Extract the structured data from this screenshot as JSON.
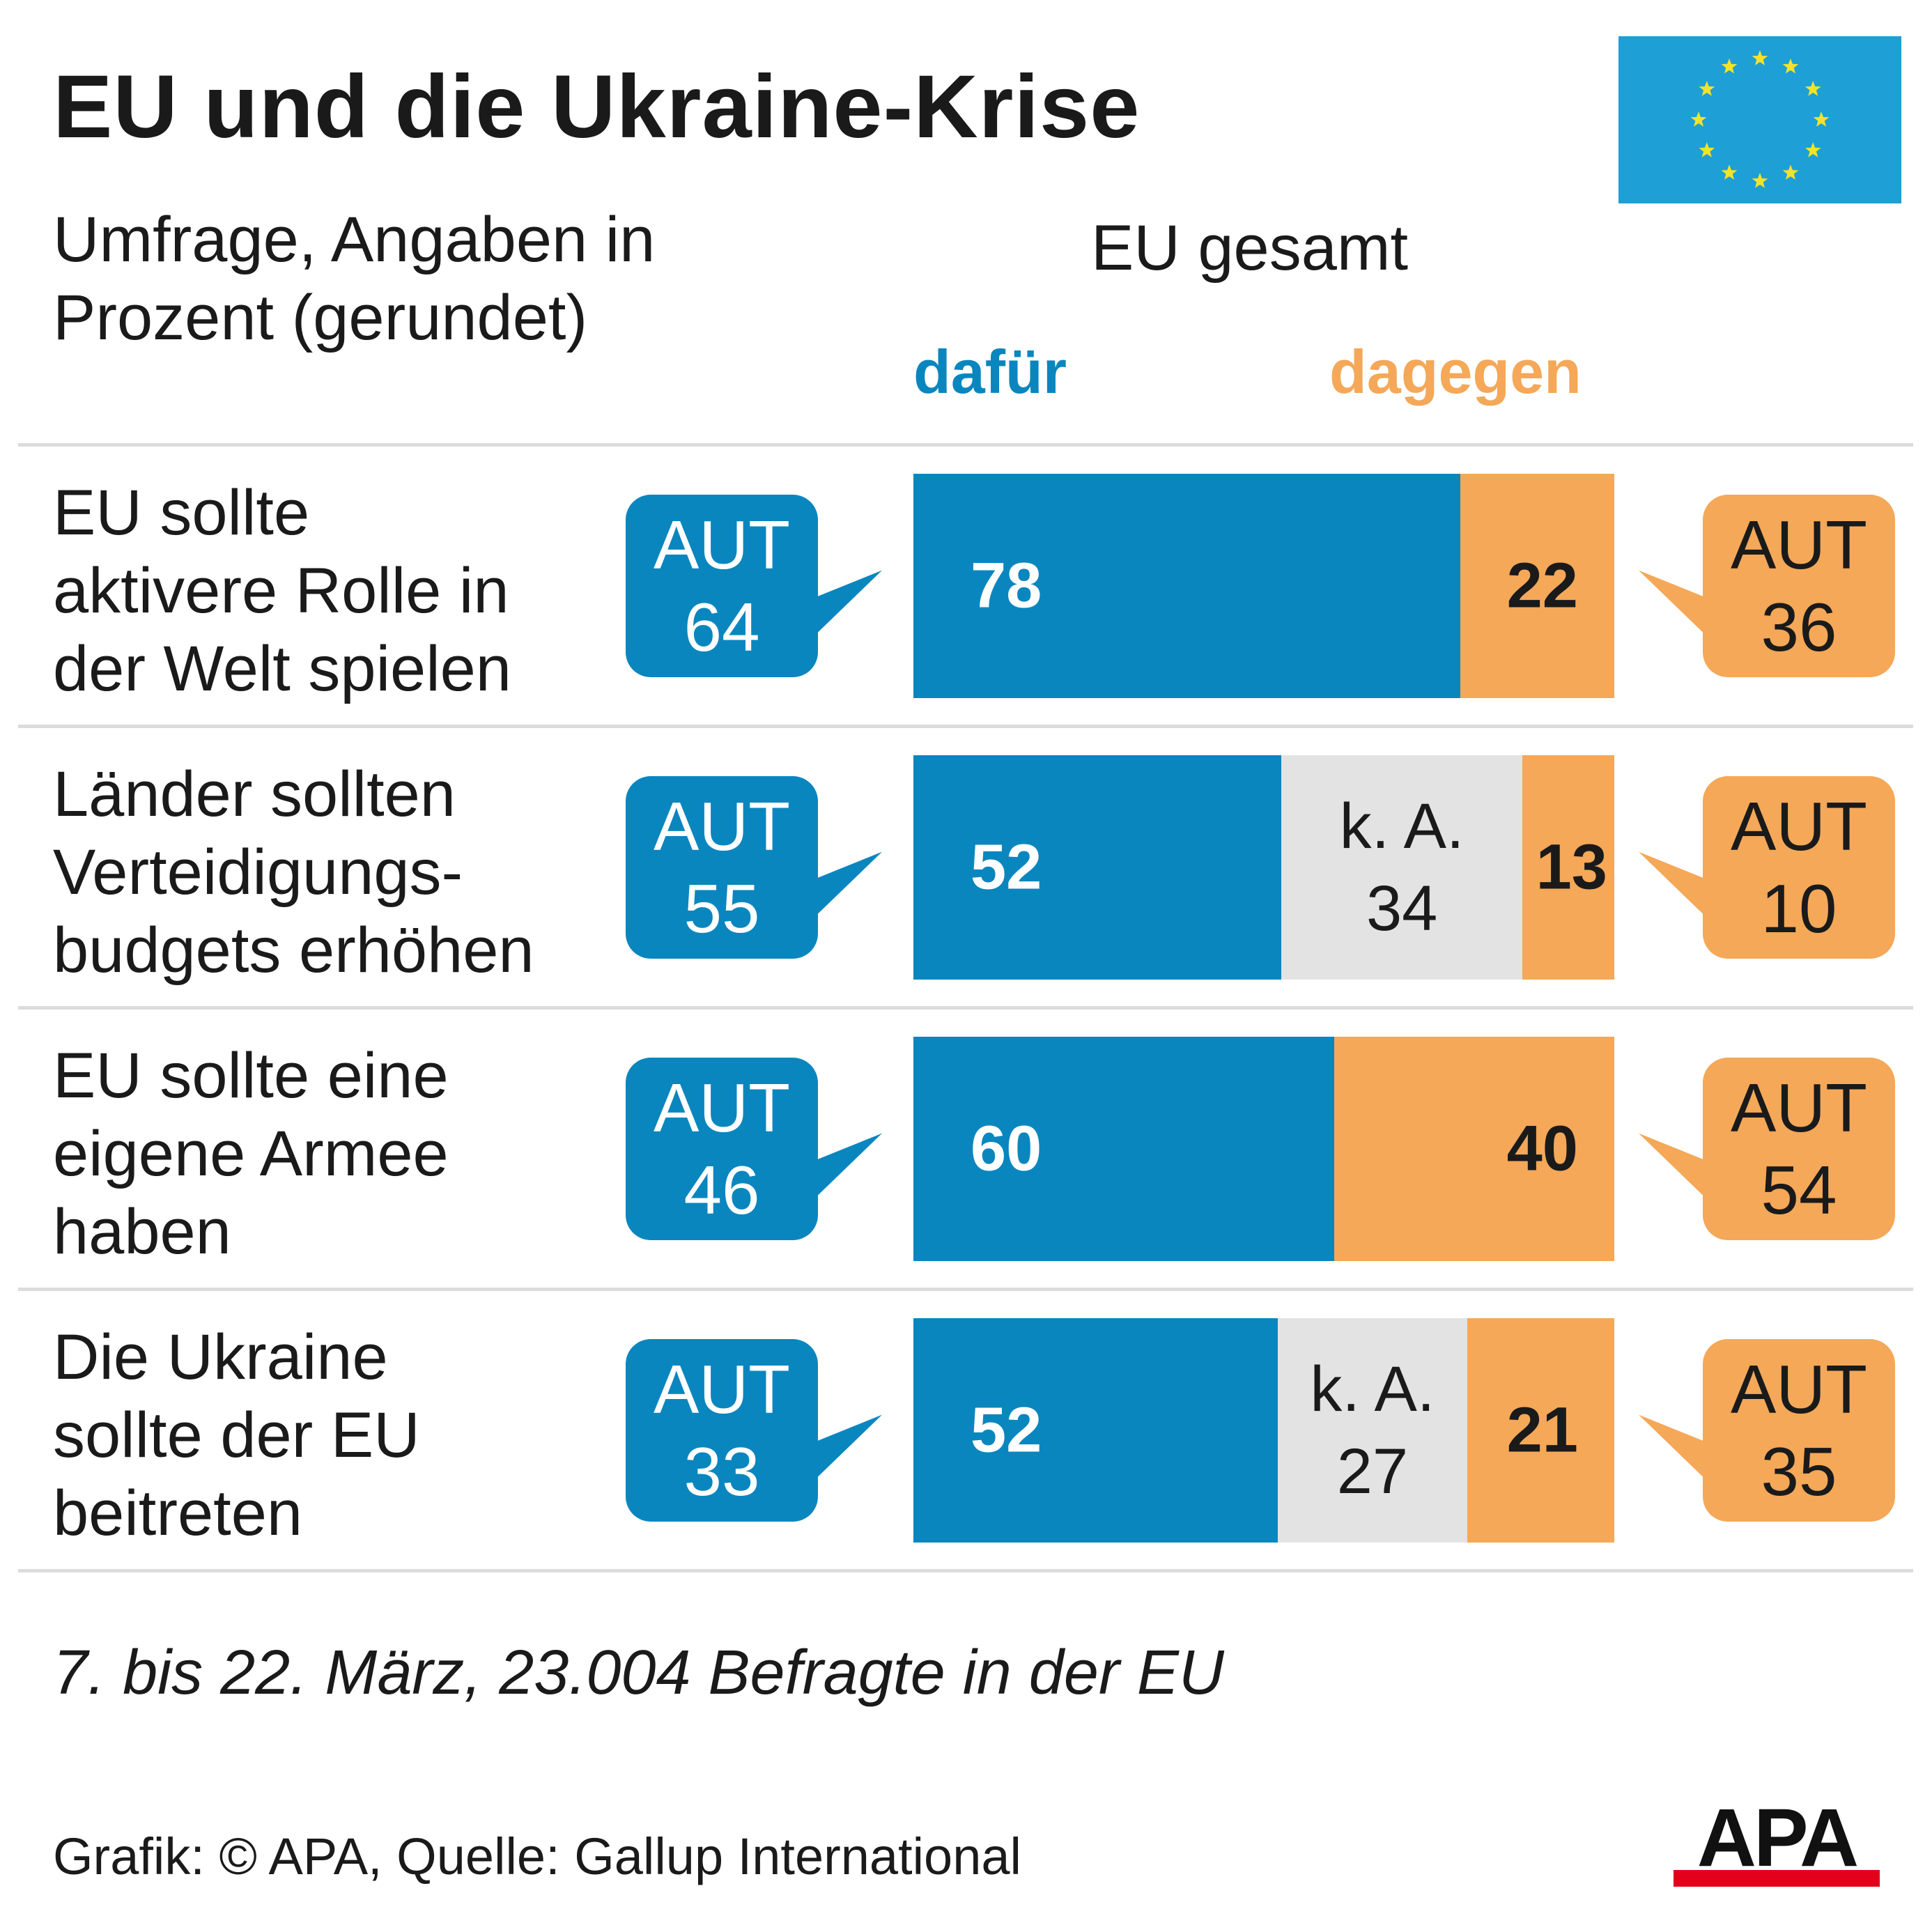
{
  "title": "EU und die Ukraine-Krise",
  "subtitle": "Umfrage, Angaben in Prozent (gerundet)",
  "group_label": "EU gesamt",
  "legend": {
    "for": "dafür",
    "against": "dagegen"
  },
  "colors": {
    "for": "#0a86bf",
    "against": "#f4a858",
    "no_answer": "#e3e3e3",
    "flag_blue": "#1e9fd6",
    "flag_star": "#f5e22a",
    "apa_red": "#e3001b"
  },
  "bubble_prefix": "AUT",
  "no_answer_label": "k. A.",
  "chart_data": {
    "type": "bar",
    "orientation": "horizontal-stacked-100",
    "categories": [
      "EU sollte aktivere Rolle in der Welt spielen",
      "Länder sollten Verteidigungs-budgets erhöhen",
      "EU sollte eine eigene Armee haben",
      "Die Ukraine sollte der EU beitreten"
    ],
    "series": [
      {
        "name": "dafür",
        "values": [
          78,
          52,
          60,
          52
        ]
      },
      {
        "name": "k. A.",
        "values": [
          0,
          34,
          0,
          27
        ]
      },
      {
        "name": "dagegen",
        "values": [
          22,
          13,
          40,
          21
        ]
      }
    ],
    "austria": {
      "for": [
        64,
        55,
        46,
        33
      ],
      "against": [
        36,
        10,
        54,
        35
      ]
    },
    "xlim": [
      0,
      100
    ]
  },
  "rows": [
    {
      "label_lines": [
        "EU sollte",
        "aktivere Rolle in",
        "der Welt spielen"
      ],
      "eu_for": "78",
      "eu_na": null,
      "eu_against": "22",
      "aut_for": "64",
      "aut_against": "36"
    },
    {
      "label_lines": [
        "Länder sollten",
        "Verteidigungs-",
        "budgets erhöhen"
      ],
      "eu_for": "52",
      "eu_na": "34",
      "eu_against": "13",
      "aut_for": "55",
      "aut_against": "10"
    },
    {
      "label_lines": [
        "EU sollte eine",
        "eigene Armee",
        "haben"
      ],
      "eu_for": "60",
      "eu_na": null,
      "eu_against": "40",
      "aut_for": "46",
      "aut_against": "54"
    },
    {
      "label_lines": [
        "Die Ukraine",
        "sollte der EU",
        "beitreten"
      ],
      "eu_for": "52",
      "eu_na": "27",
      "eu_against": "21",
      "aut_for": "33",
      "aut_against": "35"
    }
  ],
  "footnote": "7. bis 22. März, 23.004 Befragte in der EU",
  "credit": "Grafik: © APA, Quelle: Gallup International",
  "logo_text": "APA",
  "icons": {
    "flag": "eu-flag-icon",
    "logo": "apa-logo"
  }
}
